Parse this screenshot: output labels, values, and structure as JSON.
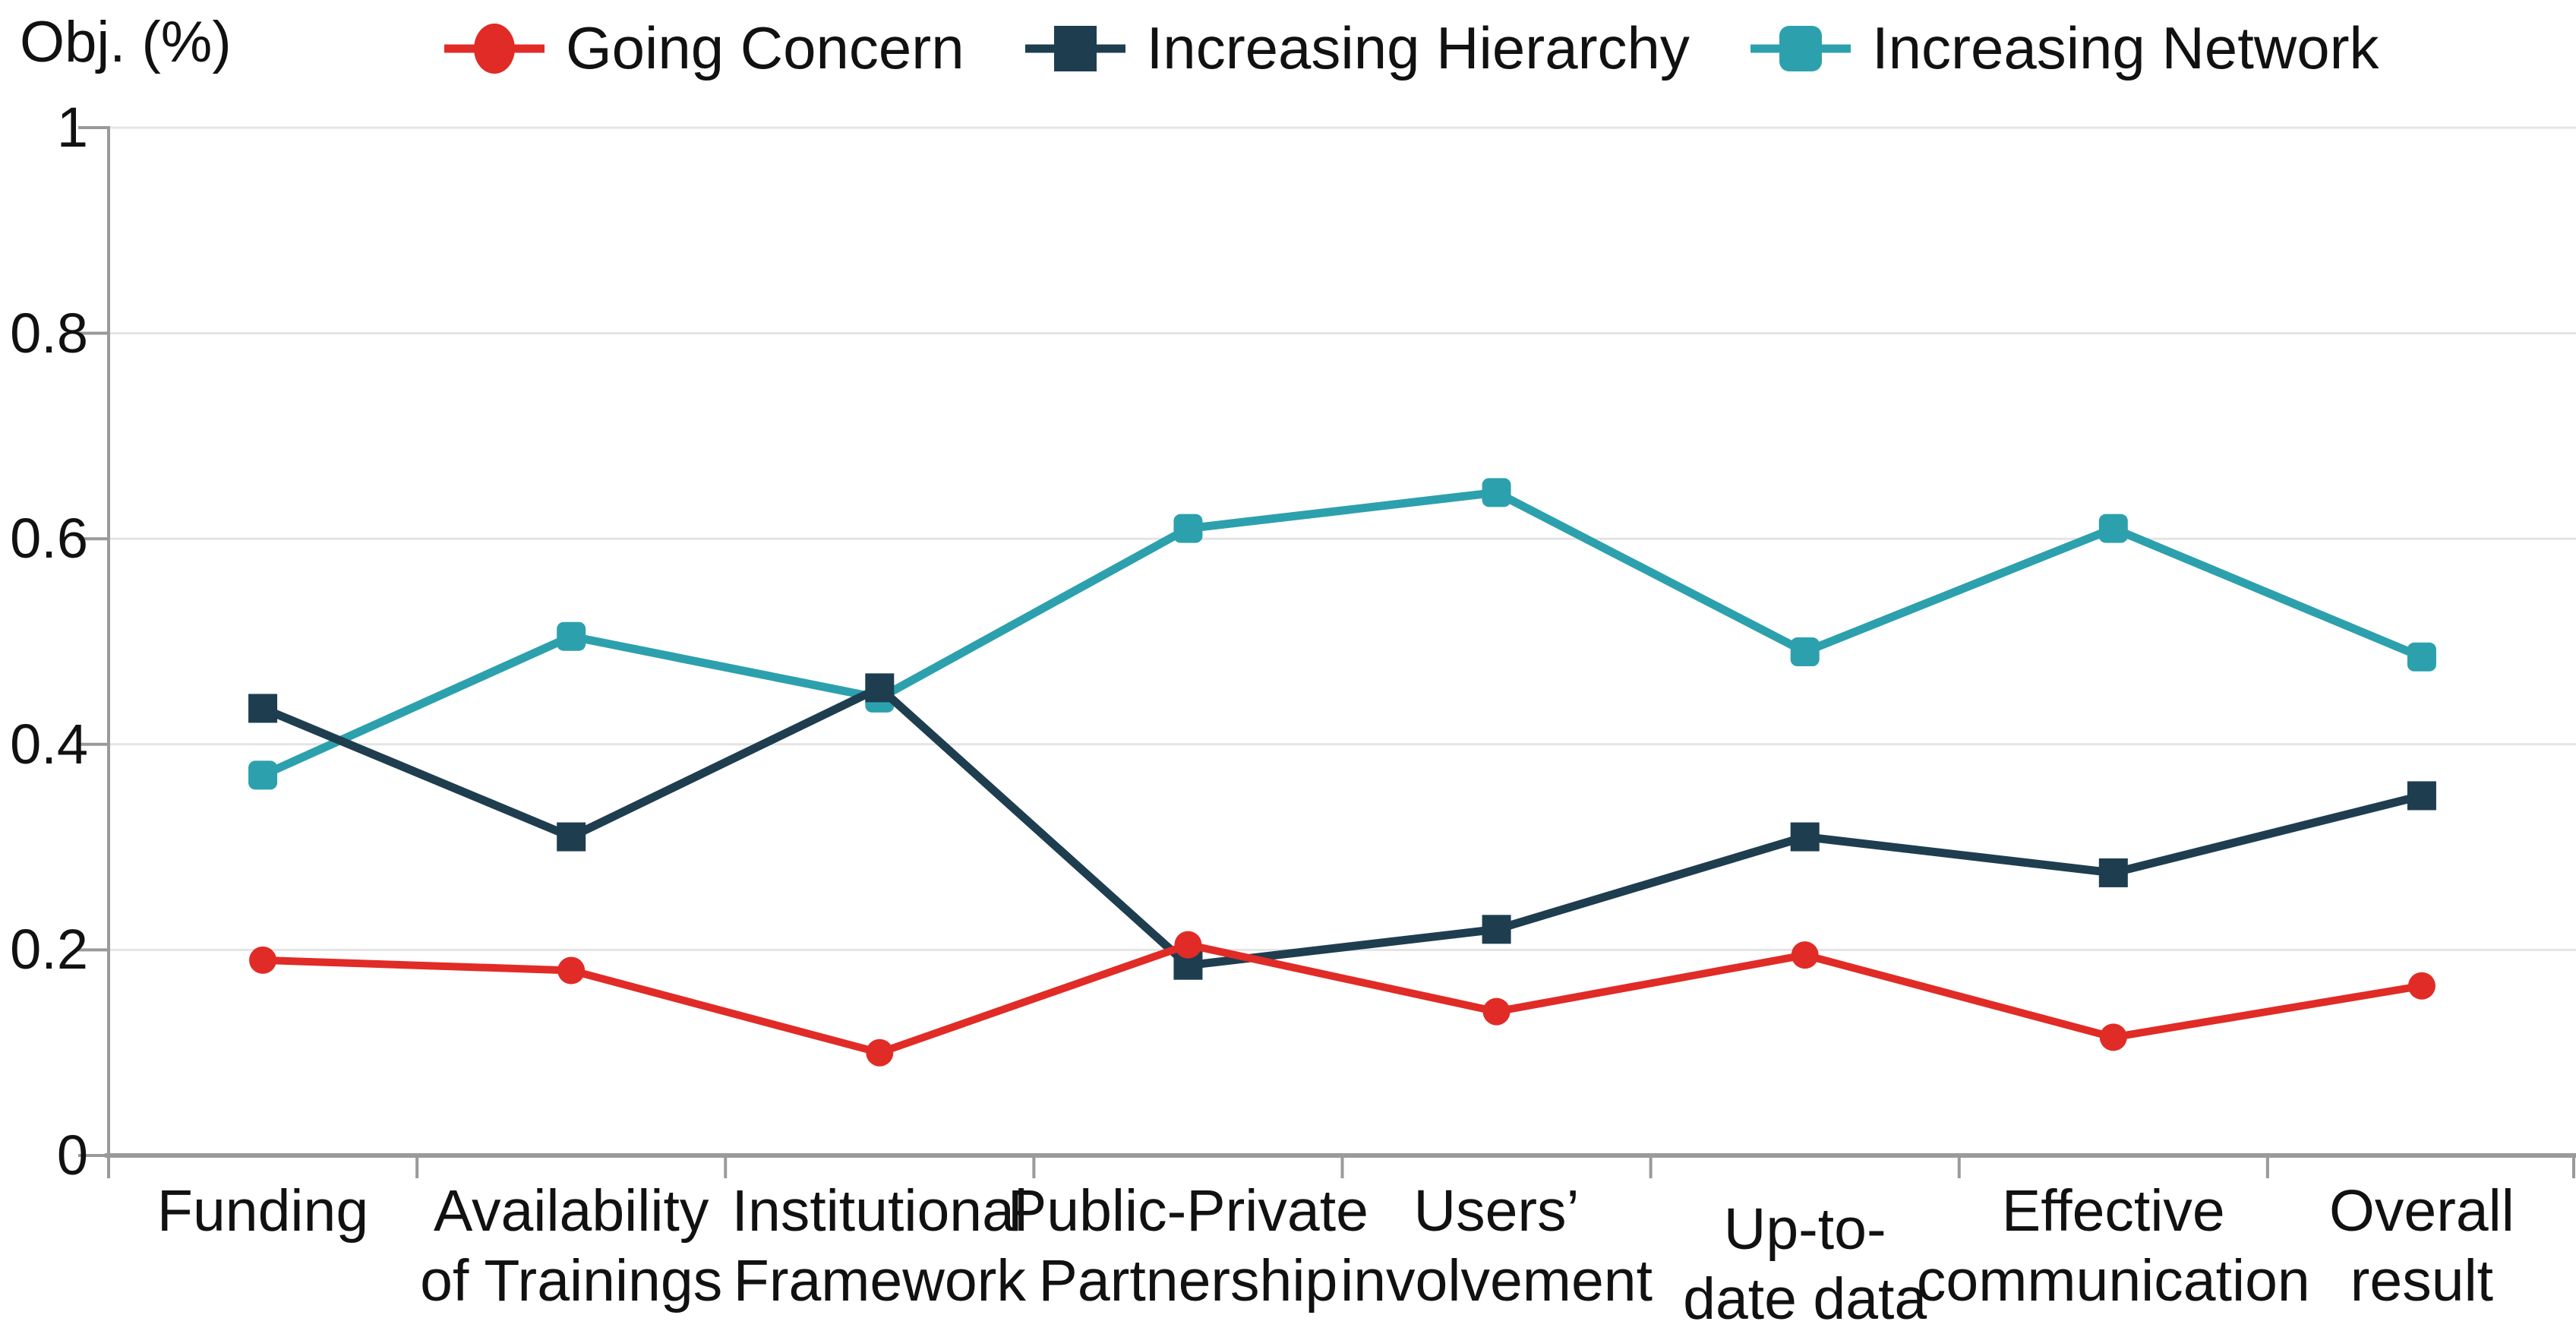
{
  "colors": {
    "background": "#FFFFFF",
    "grid": "#E4E4E4",
    "axis": "#9A9A9A",
    "text": "#111111"
  },
  "chart_data": {
    "type": "line",
    "ylabel": "Obj. (%)",
    "categories": [
      "Funding",
      "Availability of Trainings",
      "Institutional Framework",
      "Public-Private Partnership",
      "Users’ involvement",
      "Up-to-date data",
      "Effective communication",
      "Overall result"
    ],
    "category_label_lines": [
      [
        "Funding"
      ],
      [
        "Availability",
        "of Trainings"
      ],
      [
        "Institutional",
        "Framework"
      ],
      [
        "Public-Private",
        "Partnership"
      ],
      [
        "Users’",
        "involvement"
      ],
      [
        "Up-to-",
        "date data"
      ],
      [
        "Effective",
        "communication"
      ],
      [
        "Overall",
        "result"
      ]
    ],
    "series": [
      {
        "name": "Going Concern",
        "marker": "circle",
        "color": "#E12B26",
        "values": [
          0.19,
          0.18,
          0.1,
          0.205,
          0.14,
          0.195,
          0.115,
          0.165
        ]
      },
      {
        "name": "Increasing Hierarchy",
        "marker": "square",
        "color": "#1E3E50",
        "values": [
          0.435,
          0.31,
          0.455,
          0.185,
          0.22,
          0.31,
          0.275,
          0.35
        ]
      },
      {
        "name": "Increasing Network",
        "marker": "rounded-square",
        "color": "#2CA1AD",
        "values": [
          0.37,
          0.505,
          0.445,
          0.61,
          0.645,
          0.49,
          0.61,
          0.485
        ]
      }
    ],
    "yticks": [
      {
        "label": "0",
        "value": 0
      },
      {
        "label": "0.2",
        "value": 0.2
      },
      {
        "label": "0.4",
        "value": 0.4
      },
      {
        "label": "0.6",
        "value": 0.6
      },
      {
        "label": "0.8",
        "value": 0.8
      },
      {
        "label": "1",
        "value": 1
      }
    ],
    "ylim": [
      0,
      1
    ],
    "grid": "horizontal-only",
    "legend_position": "top"
  }
}
